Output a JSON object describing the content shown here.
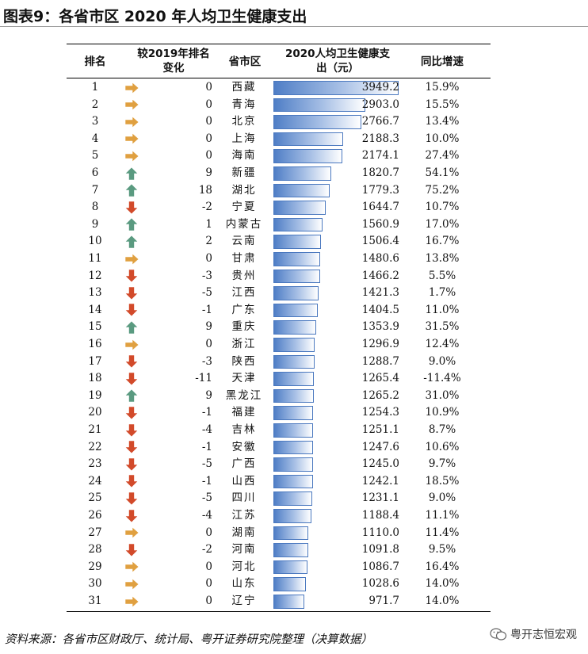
{
  "title": "图表9：各省市区 2020 年人均卫生健康支出",
  "source": "资料来源：各省市区财政厅、统计局、粤开证券研究院整理（决算数据）",
  "watermark": "粤开志恒宏观",
  "colors": {
    "bar_fill": "#7a9fd6",
    "bar_border": "#4a78bf",
    "arrow_up": "#5a9a80",
    "arrow_down": "#d24a2a",
    "arrow_flat": "#e0a040"
  },
  "chart_data": {
    "type": "table",
    "columns": [
      "排名",
      "较2019年排名变化",
      "省市区",
      "2020人均卫生健康支出（元）",
      "同比增速"
    ],
    "header_lines": {
      "rank": "排名",
      "change": [
        "较2019年排名",
        "变化"
      ],
      "province": "省市区",
      "value": [
        "2020人均卫生健康支",
        "出（元）"
      ],
      "growth": "同比增速"
    },
    "value_max": 3949.2,
    "rows": [
      {
        "rank": "1",
        "change": "0",
        "arrow": "flat",
        "province": "西藏",
        "value": 3949.2,
        "value_text": "3949.2",
        "growth": "15.9%"
      },
      {
        "rank": "2",
        "change": "0",
        "arrow": "flat",
        "province": "青海",
        "value": 2903.0,
        "value_text": "2903.0",
        "growth": "15.5%"
      },
      {
        "rank": "3",
        "change": "0",
        "arrow": "flat",
        "province": "北京",
        "value": 2766.7,
        "value_text": "2766.7",
        "growth": "13.4%"
      },
      {
        "rank": "4",
        "change": "0",
        "arrow": "flat",
        "province": "上海",
        "value": 2188.3,
        "value_text": "2188.3",
        "growth": "10.0%"
      },
      {
        "rank": "5",
        "change": "0",
        "arrow": "flat",
        "province": "海南",
        "value": 2174.1,
        "value_text": "2174.1",
        "growth": "27.4%"
      },
      {
        "rank": "6",
        "change": "9",
        "arrow": "up",
        "province": "新疆",
        "value": 1820.7,
        "value_text": "1820.7",
        "growth": "54.1%"
      },
      {
        "rank": "7",
        "change": "18",
        "arrow": "up",
        "province": "湖北",
        "value": 1779.3,
        "value_text": "1779.3",
        "growth": "75.2%"
      },
      {
        "rank": "8",
        "change": "-2",
        "arrow": "down",
        "province": "宁夏",
        "value": 1644.7,
        "value_text": "1644.7",
        "growth": "10.7%"
      },
      {
        "rank": "9",
        "change": "1",
        "arrow": "up",
        "province": "内蒙古",
        "value": 1560.9,
        "value_text": "1560.9",
        "growth": "17.0%"
      },
      {
        "rank": "10",
        "change": "2",
        "arrow": "up",
        "province": "云南",
        "value": 1506.4,
        "value_text": "1506.4",
        "growth": "16.7%"
      },
      {
        "rank": "11",
        "change": "0",
        "arrow": "flat",
        "province": "甘肃",
        "value": 1480.6,
        "value_text": "1480.6",
        "growth": "13.8%"
      },
      {
        "rank": "12",
        "change": "-3",
        "arrow": "down",
        "province": "贵州",
        "value": 1466.2,
        "value_text": "1466.2",
        "growth": "5.5%"
      },
      {
        "rank": "13",
        "change": "-5",
        "arrow": "down",
        "province": "江西",
        "value": 1421.3,
        "value_text": "1421.3",
        "growth": "1.7%"
      },
      {
        "rank": "14",
        "change": "-1",
        "arrow": "down",
        "province": "广东",
        "value": 1404.5,
        "value_text": "1404.5",
        "growth": "11.0%"
      },
      {
        "rank": "15",
        "change": "9",
        "arrow": "up",
        "province": "重庆",
        "value": 1353.9,
        "value_text": "1353.9",
        "growth": "31.5%"
      },
      {
        "rank": "16",
        "change": "0",
        "arrow": "flat",
        "province": "浙江",
        "value": 1296.9,
        "value_text": "1296.9",
        "growth": "12.4%"
      },
      {
        "rank": "17",
        "change": "-3",
        "arrow": "down",
        "province": "陕西",
        "value": 1288.7,
        "value_text": "1288.7",
        "growth": "9.0%"
      },
      {
        "rank": "18",
        "change": "-11",
        "arrow": "down",
        "province": "天津",
        "value": 1265.4,
        "value_text": "1265.4",
        "growth": "-11.4%"
      },
      {
        "rank": "19",
        "change": "9",
        "arrow": "up",
        "province": "黑龙江",
        "value": 1265.2,
        "value_text": "1265.2",
        "growth": "31.0%"
      },
      {
        "rank": "20",
        "change": "-1",
        "arrow": "down",
        "province": "福建",
        "value": 1254.3,
        "value_text": "1254.3",
        "growth": "10.9%"
      },
      {
        "rank": "21",
        "change": "-4",
        "arrow": "down",
        "province": "吉林",
        "value": 1251.1,
        "value_text": "1251.1",
        "growth": "8.7%"
      },
      {
        "rank": "22",
        "change": "-1",
        "arrow": "down",
        "province": "安徽",
        "value": 1247.6,
        "value_text": "1247.6",
        "growth": "10.6%"
      },
      {
        "rank": "23",
        "change": "-5",
        "arrow": "down",
        "province": "广西",
        "value": 1245.0,
        "value_text": "1245.0",
        "growth": "9.7%"
      },
      {
        "rank": "24",
        "change": "-1",
        "arrow": "down",
        "province": "山西",
        "value": 1242.1,
        "value_text": "1242.1",
        "growth": "18.5%"
      },
      {
        "rank": "25",
        "change": "-5",
        "arrow": "down",
        "province": "四川",
        "value": 1231.1,
        "value_text": "1231.1",
        "growth": "9.0%"
      },
      {
        "rank": "26",
        "change": "-4",
        "arrow": "down",
        "province": "江苏",
        "value": 1188.4,
        "value_text": "1188.4",
        "growth": "11.1%"
      },
      {
        "rank": "27",
        "change": "0",
        "arrow": "flat",
        "province": "湖南",
        "value": 1110.0,
        "value_text": "1110.0",
        "growth": "11.4%"
      },
      {
        "rank": "28",
        "change": "-2",
        "arrow": "down",
        "province": "河南",
        "value": 1091.8,
        "value_text": "1091.8",
        "growth": "9.5%"
      },
      {
        "rank": "29",
        "change": "0",
        "arrow": "flat",
        "province": "河北",
        "value": 1086.7,
        "value_text": "1086.7",
        "growth": "16.4%"
      },
      {
        "rank": "30",
        "change": "0",
        "arrow": "flat",
        "province": "山东",
        "value": 1028.6,
        "value_text": "1028.6",
        "growth": "14.0%"
      },
      {
        "rank": "31",
        "change": "0",
        "arrow": "flat",
        "province": "辽宁",
        "value": 971.7,
        "value_text": "971.7",
        "growth": "14.0%"
      }
    ]
  }
}
